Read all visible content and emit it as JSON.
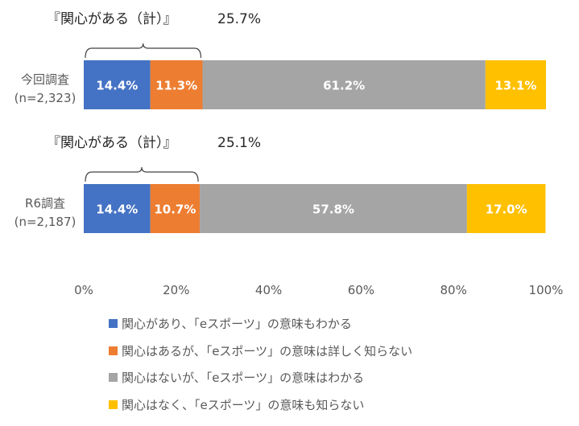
{
  "chart_data": {
    "type": "bar",
    "orientation": "horizontal",
    "stacked": true,
    "categories": [
      {
        "label_line1": "今回調査",
        "label_line2": "(n=2,323)",
        "bracket_label": "『関心がある（計）』",
        "bracket_value": "25.7%"
      },
      {
        "label_line1": "R6調査",
        "label_line2": "(n=2,187)",
        "bracket_label": "『関心がある（計）』",
        "bracket_value": "25.1%"
      }
    ],
    "series": [
      {
        "name": "関心があり、「eスポーツ」の意味もわかる",
        "color": "#4472C4",
        "values": [
          14.4,
          14.4
        ]
      },
      {
        "name": "関心はあるが、「eスポーツ」の意味は詳しく知らない",
        "color": "#ED7D31",
        "values": [
          11.3,
          10.7
        ]
      },
      {
        "name": "関心はないが、「eスポーツ」の意味はわかる",
        "color": "#A5A5A5",
        "values": [
          61.2,
          57.8
        ]
      },
      {
        "name": "関心はなく、「eスポーツ」の意味も知らない",
        "color": "#FFC000",
        "values": [
          13.1,
          17.0
        ]
      }
    ],
    "data_labels": [
      [
        "14.4%",
        "11.3%",
        "61.2%",
        "13.1%"
      ],
      [
        "14.4%",
        "10.7%",
        "57.8%",
        "17.0%"
      ]
    ],
    "xlim": [
      0,
      100
    ],
    "x_ticks": [
      "0%",
      "20%",
      "40%",
      "60%",
      "80%",
      "100%"
    ],
    "grid": false,
    "legend_position": "bottom"
  }
}
